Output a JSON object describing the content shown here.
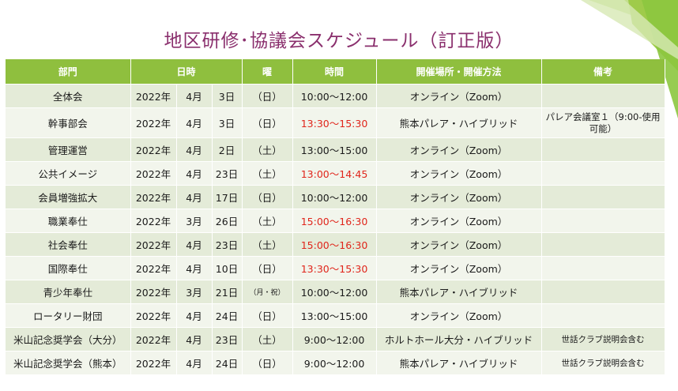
{
  "title": "地区研修･協議会スケジュール（訂正版）",
  "colors": {
    "title": "#8a2f6d",
    "header_bg": "#8fbf3e",
    "row_odd": "#e4ebd8",
    "row_even": "#f2f5ec",
    "highlight_time": "#e0251b"
  },
  "headers": [
    "部門",
    "日時",
    "曜",
    "時間",
    "開催場所・開催方法",
    "備考"
  ],
  "rows": [
    {
      "dept": "全体会",
      "year": "2022年",
      "month": "4月",
      "day": "3日",
      "dow": "（日）",
      "time": "10:00～12:00",
      "time_red": false,
      "place": "オンライン（Zoom）",
      "note": ""
    },
    {
      "dept": "幹事部会",
      "year": "2022年",
      "month": "4月",
      "day": "3日",
      "dow": "（日）",
      "time": "13:30～15:30",
      "time_red": true,
      "place": "熊本パレア・ハイブリッド",
      "note": "パレア会議室１（9:00-使用可能）"
    },
    {
      "dept": "管理運営",
      "year": "2022年",
      "month": "4月",
      "day": "2日",
      "dow": "（土）",
      "time": "13:00～15:00",
      "time_red": false,
      "place": "オンライン（Zoom）",
      "note": ""
    },
    {
      "dept": "公共イメージ",
      "year": "2022年",
      "month": "4月",
      "day": "23日",
      "dow": "（土）",
      "time": "13:00～14:45",
      "time_red": true,
      "place": "オンライン（Zoom）",
      "note": ""
    },
    {
      "dept": "会員増強拡大",
      "year": "2022年",
      "month": "4月",
      "day": "17日",
      "dow": "（日）",
      "time": "10:00～12:00",
      "time_red": false,
      "place": "オンライン（Zoom）",
      "note": ""
    },
    {
      "dept": "職業奉仕",
      "year": "2022年",
      "month": "3月",
      "day": "26日",
      "dow": "（土）",
      "time": "15:00～16:30",
      "time_red": true,
      "place": "オンライン（Zoom）",
      "note": ""
    },
    {
      "dept": "社会奉仕",
      "year": "2022年",
      "month": "4月",
      "day": "23日",
      "dow": "（土）",
      "time": "15:00～16:30",
      "time_red": true,
      "place": "オンライン（Zoom）",
      "note": ""
    },
    {
      "dept": "国際奉仕",
      "year": "2022年",
      "month": "4月",
      "day": "10日",
      "dow": "（日）",
      "time": "13:30～15:30",
      "time_red": true,
      "place": "オンライン（Zoom）",
      "note": ""
    },
    {
      "dept": "青少年奉仕",
      "year": "2022年",
      "month": "3月",
      "day": "21日",
      "dow": "（月・祝）",
      "dow_small": true,
      "time": "10:00～12:00",
      "time_red": false,
      "place": "熊本パレア・ハイブリッド",
      "note": ""
    },
    {
      "dept": "ロータリー財団",
      "year": "2022年",
      "month": "4月",
      "day": "24日",
      "dow": "（日）",
      "time": "13:00～15:00",
      "time_red": false,
      "place": "オンライン（Zoom）",
      "note": ""
    },
    {
      "dept": "米山記念奨学会（大分）",
      "year": "2022年",
      "month": "4月",
      "day": "23日",
      "dow": "（土）",
      "time": "9:00～12:00",
      "time_red": false,
      "place": "ホルトホール大分・ハイブリッド",
      "note": "世話クラブ説明会含む"
    },
    {
      "dept": "米山記念奨学会（熊本）",
      "year": "2022年",
      "month": "4月",
      "day": "24日",
      "dow": "（日）",
      "time": "9:00～12:00",
      "time_red": false,
      "place": "熊本パレア・ハイブリッド",
      "note": "世話クラブ説明会含む"
    }
  ]
}
